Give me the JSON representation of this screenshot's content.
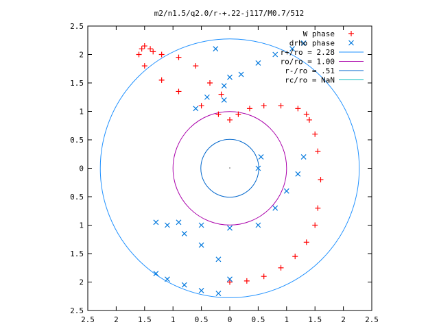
{
  "chart_data": {
    "type": "scatter",
    "title": "m2/n1.5/q2.0/r-+.22-j117/M0.7/512",
    "xlabel": "",
    "ylabel": "",
    "xlim": [
      -2.5,
      2.5
    ],
    "ylim": [
      -2.5,
      2.5
    ],
    "x_ticks": [
      "2.5",
      "2",
      "1.5",
      "1",
      "0.5",
      "0",
      "0.5",
      "1",
      "1.5",
      "2",
      "2.5"
    ],
    "y_ticks": [
      "2.5",
      "2",
      "1.5",
      "1",
      "0.5",
      "0",
      "0.5",
      "1",
      "1.5",
      "2",
      "2.5"
    ],
    "grid": false,
    "legend_position": "top-right",
    "series": [
      {
        "name": "W phase",
        "kind": "points",
        "marker": "plus",
        "color": "#ff0000",
        "x": [
          0.0,
          0.3,
          0.6,
          0.9,
          1.15,
          1.35,
          1.5,
          1.55,
          1.6,
          1.55,
          1.5,
          1.4,
          1.35,
          1.2,
          0.9,
          0.6,
          0.35,
          0.15,
          0.0,
          -0.2,
          -0.5,
          -0.9,
          -1.2,
          -1.5,
          -1.6,
          -1.55,
          -1.5,
          -1.4,
          -1.35,
          -1.2,
          -0.9,
          -0.6,
          -0.35,
          -0.15
        ],
        "y": [
          -2.0,
          -1.98,
          -1.9,
          -1.75,
          -1.55,
          -1.3,
          -1.0,
          -0.7,
          -0.2,
          0.3,
          0.6,
          0.85,
          0.95,
          1.05,
          1.1,
          1.1,
          1.05,
          0.95,
          0.85,
          0.95,
          1.1,
          1.35,
          1.55,
          1.8,
          2.0,
          2.1,
          2.15,
          2.1,
          2.05,
          2.0,
          1.95,
          1.8,
          1.5,
          1.3
        ]
      },
      {
        "name": "drho phase",
        "kind": "points",
        "marker": "cross",
        "color": "#0077dd",
        "x": [
          -1.3,
          -1.1,
          -0.8,
          -0.5,
          -0.2,
          0.0,
          -0.2,
          -0.5,
          -0.8,
          -1.1,
          -1.3,
          -0.9,
          -0.5,
          0.0,
          0.5,
          0.8,
          1.0,
          1.2,
          1.3,
          0.5,
          0.55,
          1.3,
          1.1,
          0.8,
          0.5,
          0.2,
          -0.1,
          -0.4,
          -0.6,
          -0.1,
          0.0,
          -0.25
        ],
        "y": [
          -1.85,
          -1.95,
          -2.05,
          -2.15,
          -2.2,
          -1.95,
          -1.6,
          -1.35,
          -1.15,
          -1.0,
          -0.95,
          -0.95,
          -1.0,
          -1.05,
          -1.0,
          -0.7,
          -0.4,
          -0.1,
          0.2,
          0.0,
          0.2,
          2.2,
          2.1,
          2.0,
          1.85,
          1.65,
          1.45,
          1.25,
          1.05,
          1.2,
          1.6,
          2.1
        ]
      },
      {
        "name": "r+/ro = 2.28",
        "kind": "circle",
        "radius": 2.28,
        "color": "#1e90ff"
      },
      {
        "name": "ro/ro = 1.00",
        "kind": "circle",
        "radius": 1.0,
        "color": "#aa00aa"
      },
      {
        "name": "r-/ro = .51",
        "kind": "circle",
        "radius": 0.51,
        "color": "#0066cc"
      },
      {
        "name": "rc/ro = NaN",
        "kind": "circle",
        "radius": null,
        "color": "#00bbbb"
      }
    ]
  }
}
